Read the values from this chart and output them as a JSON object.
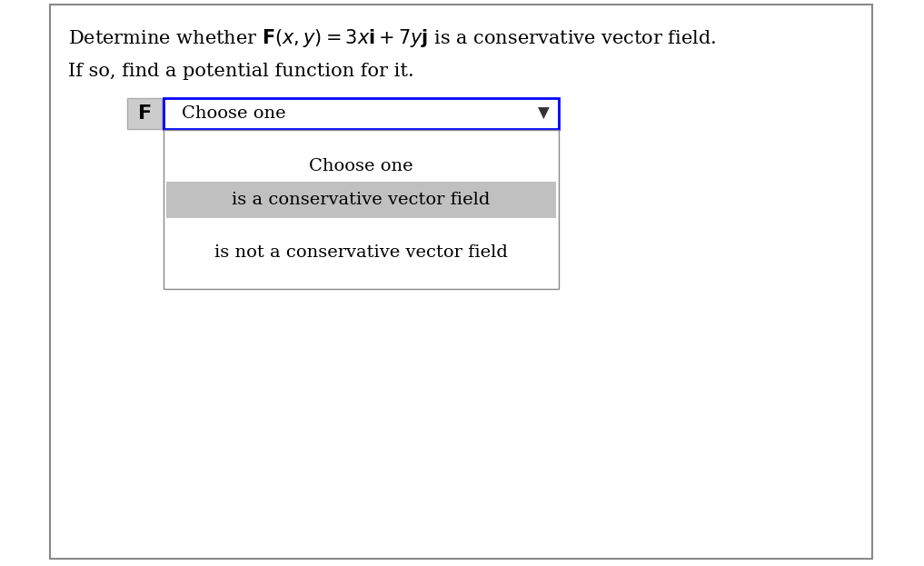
{
  "title_line1": "Determine whether $\\mathbf{F}(x, y) = 3x\\mathbf{i} + 7y\\mathbf{j}$ is a conservative vector field.",
  "title_line2": "If so, find a potential function for it.",
  "label_F": "$\\mathbf{F}$",
  "dropdown_text": "Choose one",
  "dropdown_arrow": "▼",
  "option1": "Choose one",
  "option2": "is a conservative vector field",
  "option3": "is not a conservative vector field",
  "bg_color": "#ffffff",
  "outer_border_color": "#888888",
  "dropdown_border_color": "#0000ff",
  "dropdown_bg": "#ffffff",
  "option2_bg": "#c0c0c0",
  "listbox_border_color": "#888888",
  "listbox_bg": "#ffffff",
  "F_label_bg": "#cccccc",
  "title_fontsize": 15,
  "option_fontsize": 14
}
